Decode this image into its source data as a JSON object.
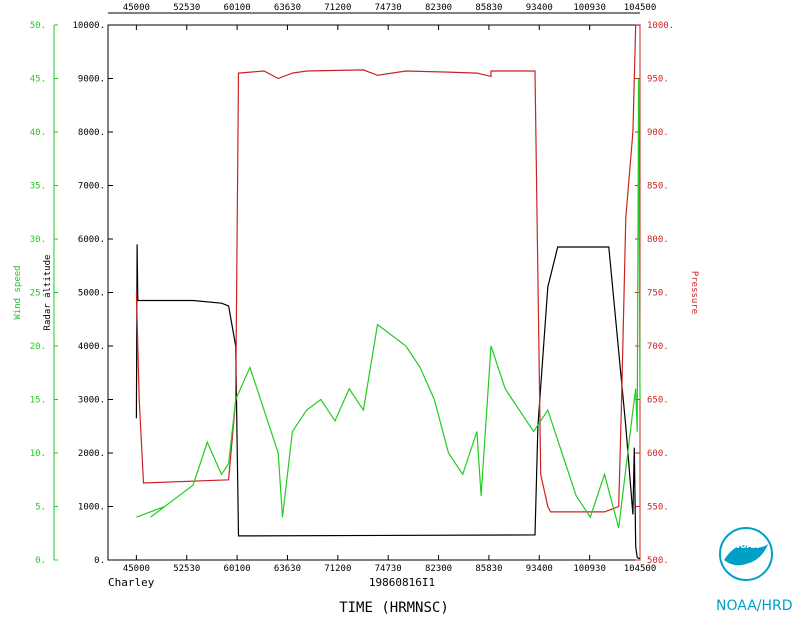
{
  "chart_data": {
    "type": "line",
    "storm_name": "Charley",
    "flight_id": "19860816I1",
    "xlabel": "TIME (HRMNSC)",
    "x_ticks": [
      "45000",
      "52530",
      "60100",
      "63630",
      "71200",
      "74730",
      "82300",
      "85830",
      "93400",
      "100930",
      "104500"
    ],
    "xlim_hours": [
      4.5,
      10.75
    ],
    "axes": {
      "wind_speed": {
        "label": "Wind speed",
        "color": "#22cc22",
        "ylim": [
          0,
          50
        ],
        "ticks": [
          "0.",
          "5.",
          "10.",
          "15.",
          "20.",
          "25.",
          "30.",
          "35.",
          "40.",
          "45.",
          "50."
        ]
      },
      "radar_altitude": {
        "label": "Radar altitude",
        "color": "#000000",
        "ylim": [
          0,
          10000
        ],
        "ticks": [
          "0.",
          "1000.",
          "2000.",
          "3000.",
          "4000.",
          "5000.",
          "6000.",
          "7000.",
          "8000.",
          "9000.",
          "10000."
        ]
      },
      "pressure": {
        "label": "Pressure",
        "color": "#cc2222",
        "ylim": [
          500,
          1000
        ],
        "ticks": [
          "500.",
          "550.",
          "600.",
          "650.",
          "700.",
          "750.",
          "800.",
          "850.",
          "900.",
          "950.",
          "1000."
        ]
      }
    },
    "series": [
      {
        "name": "Radar altitude",
        "axis": "radar_altitude",
        "color": "#000000",
        "x": [
          "45000",
          "45030",
          "45100",
          "45200",
          "53000",
          "55000",
          "55500",
          "60000",
          "60200",
          "93100",
          "93300",
          "94000",
          "94700",
          "102300",
          "103500",
          "104000",
          "104100",
          "104200",
          "104300",
          "104400",
          "104500"
        ],
        "values": [
          2650,
          5900,
          4850,
          4850,
          4850,
          4800,
          4750,
          4000,
          450,
          470,
          2500,
          5100,
          5850,
          5850,
          2500,
          850,
          2100,
          250,
          50,
          30,
          30
        ]
      },
      {
        "name": "Pressure",
        "axis": "pressure",
        "color": "#cc2222",
        "x": [
          "45000",
          "45200",
          "45500",
          "55500",
          "60000",
          "60200",
          "62000",
          "63000",
          "64000",
          "65000",
          "73000",
          "74000",
          "80000",
          "83000",
          "85000",
          "86000",
          "90000",
          "93100",
          "93500",
          "94000",
          "94200",
          "102000",
          "103000",
          "103200",
          "103500",
          "104000",
          "104200",
          "104500"
        ],
        "values": [
          750,
          650,
          572,
          575,
          650,
          955,
          957,
          950,
          955,
          957,
          958,
          953,
          957,
          956,
          955,
          952,
          957,
          957,
          580,
          550,
          545,
          545,
          550,
          650,
          820,
          900,
          1000,
          1000
        ]
      },
      {
        "name": "Wind speed",
        "axis": "wind_speed",
        "color": "#22cc22",
        "x": [
          "45000",
          "47000",
          "50000",
          "52000",
          "53000",
          "54000",
          "55000",
          "55500",
          "60000",
          "61000",
          "62000",
          "63000",
          "63300",
          "64000",
          "65000",
          "70000",
          "71000",
          "72000",
          "73000",
          "74000",
          "80000",
          "81000",
          "82000",
          "83000",
          "84000",
          "85000",
          "85300",
          "90000",
          "91000",
          "93000",
          "94000",
          "94500",
          "95000",
          "100000",
          "101000",
          "102000",
          "103000",
          "104000",
          "104200",
          "104300",
          "104400",
          "104500"
        ],
        "values": [
          4,
          5,
          4,
          6,
          7,
          11,
          8,
          9,
          15,
          18,
          14,
          10,
          4,
          12,
          14,
          15,
          13,
          16,
          14,
          22,
          20,
          18,
          15,
          10,
          8,
          12,
          6,
          20,
          16,
          12,
          14,
          12,
          10,
          6,
          4,
          8,
          3,
          14,
          16,
          12,
          45,
          15
        ]
      }
    ]
  },
  "branding": {
    "logo_text": "NOAA",
    "org_label": "NOAA/HRD"
  }
}
